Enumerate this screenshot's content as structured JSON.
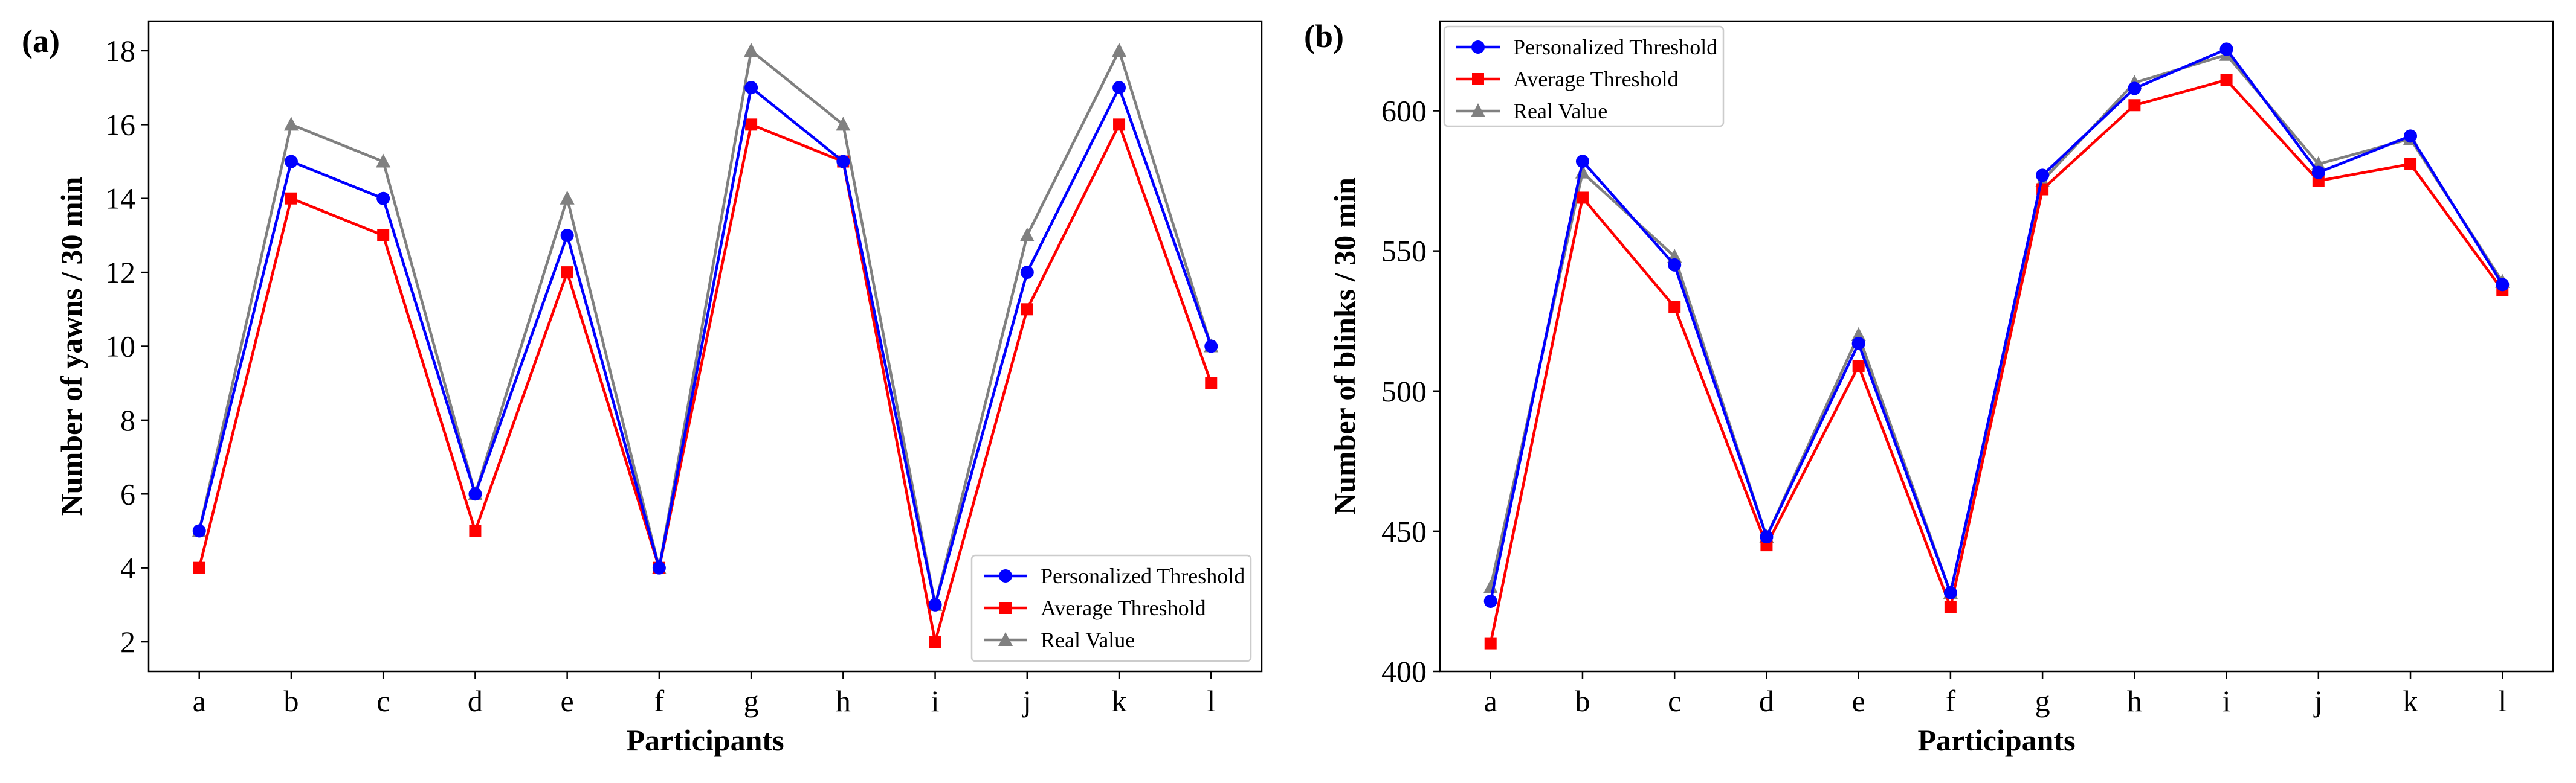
{
  "figure": {
    "panels": [
      "(a)",
      "(b)"
    ]
  },
  "colors": {
    "personalized": "#0000ff",
    "average": "#ff0000",
    "real": "#808080"
  },
  "chart_data": [
    {
      "type": "line",
      "panel_label": "(a)",
      "title": "",
      "xlabel": "Participants",
      "ylabel": "Number of yawns / 30 min",
      "categories": [
        "a",
        "b",
        "c",
        "d",
        "e",
        "f",
        "g",
        "h",
        "i",
        "j",
        "k",
        "l"
      ],
      "ylim": [
        1.2,
        18.8
      ],
      "yticks": [
        2,
        4,
        6,
        8,
        10,
        12,
        14,
        16,
        18
      ],
      "grid": false,
      "legend_position": "bottom-right",
      "series": [
        {
          "name": "Personalized Threshold",
          "marker": "circle",
          "values": [
            5,
            15,
            14,
            6,
            13,
            4,
            17,
            15,
            3,
            12,
            17,
            10
          ]
        },
        {
          "name": "Average Threshold",
          "marker": "square",
          "values": [
            4,
            14,
            13,
            5,
            12,
            4,
            16,
            15,
            2,
            11,
            16,
            9
          ]
        },
        {
          "name": "Real Value",
          "marker": "triangle",
          "values": [
            5,
            16,
            15,
            6,
            14,
            4,
            18,
            16,
            3,
            13,
            18,
            10
          ]
        }
      ]
    },
    {
      "type": "line",
      "panel_label": "(b)",
      "title": "",
      "xlabel": "Participants",
      "ylabel": "Number of blinks / 30 min",
      "categories": [
        "a",
        "b",
        "c",
        "d",
        "e",
        "f",
        "g",
        "h",
        "i",
        "j",
        "k",
        "l"
      ],
      "ylim": [
        400,
        632
      ],
      "yticks": [
        400,
        450,
        500,
        550,
        600
      ],
      "grid": false,
      "legend_position": "top-left",
      "series": [
        {
          "name": "Personalized Threshold",
          "marker": "circle",
          "values": [
            425,
            582,
            545,
            448,
            517,
            428,
            577,
            608,
            622,
            578,
            591,
            538
          ]
        },
        {
          "name": "Average Threshold",
          "marker": "square",
          "values": [
            410,
            569,
            530,
            445,
            509,
            423,
            572,
            602,
            611,
            575,
            581,
            536
          ]
        },
        {
          "name": "Real Value",
          "marker": "triangle",
          "values": [
            430,
            578,
            548,
            448,
            520,
            428,
            575,
            610,
            620,
            581,
            590,
            539
          ]
        }
      ]
    }
  ]
}
